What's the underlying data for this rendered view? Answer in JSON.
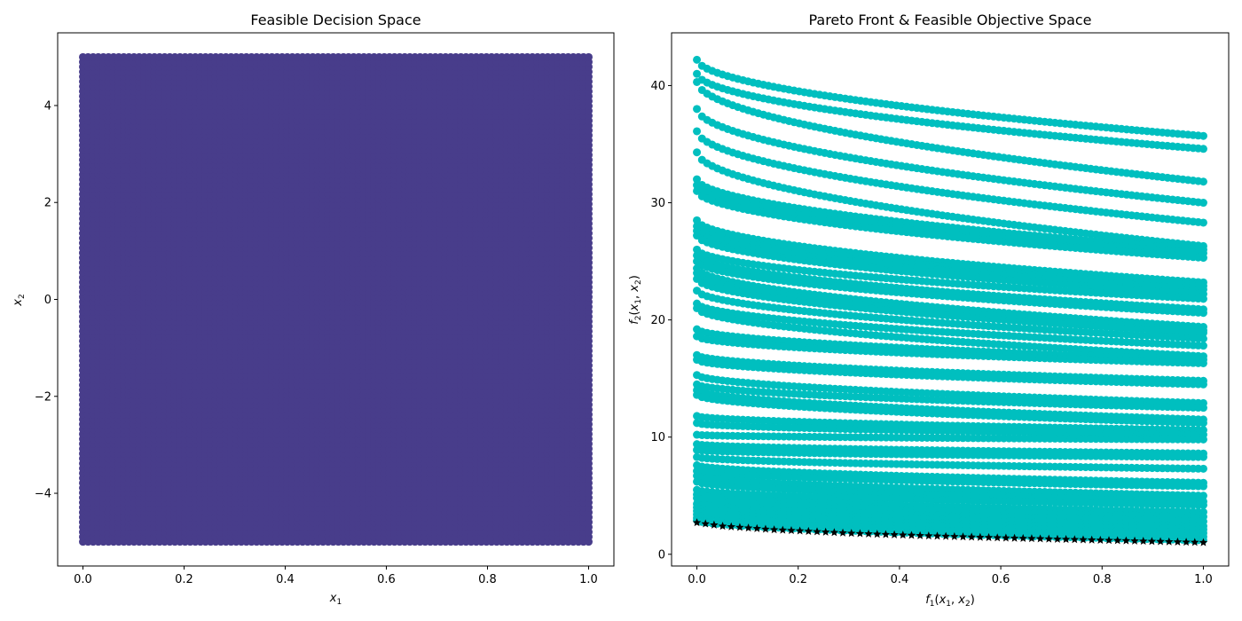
{
  "figure": {
    "background": "#ffffff"
  },
  "chart_data": [
    {
      "type": "scatter",
      "title": "Feasible Decision Space",
      "xlabel": "x1",
      "ylabel": "x2",
      "xlabel_parts": {
        "base": "x",
        "sub": "1"
      },
      "ylabel_parts": {
        "base": "x",
        "sub": "2"
      },
      "xlim": [
        -0.05,
        1.05
      ],
      "ylim": [
        -5.5,
        5.5
      ],
      "xticks": [
        0.0,
        0.2,
        0.4,
        0.6,
        0.8,
        1.0
      ],
      "xtick_labels": [
        "0.0",
        "0.2",
        "0.4",
        "0.6",
        "0.8",
        "1.0"
      ],
      "yticks": [
        -4,
        -2,
        0,
        2,
        4
      ],
      "ytick_labels": [
        "−4",
        "−2",
        "0",
        "2",
        "4"
      ],
      "grid": false,
      "series": [
        {
          "color": "#483d8b",
          "marker": "circle",
          "grid_points": {
            "x_range": [
              0,
              1
            ],
            "x_count": 100,
            "y_range": [
              -5,
              5
            ],
            "y_count": 100
          }
        }
      ]
    },
    {
      "type": "scatter",
      "title": "Pareto Front & Feasible Objective Space",
      "xlabel": "f1(x1, x2)",
      "ylabel": "f2(x1, x2)",
      "xlabel_parts": {
        "f": "f",
        "fsub": "1",
        "args": [
          {
            "base": "x",
            "sub": "1"
          },
          {
            "base": "x",
            "sub": "2"
          }
        ]
      },
      "ylabel_parts": {
        "f": "f",
        "fsub": "2",
        "args": [
          {
            "base": "x",
            "sub": "1"
          },
          {
            "base": "x",
            "sub": "2"
          }
        ]
      },
      "xlim": [
        -0.05,
        1.05
      ],
      "ylim": [
        -1.0,
        44.5
      ],
      "xticks": [
        0.0,
        0.2,
        0.4,
        0.6,
        0.8,
        1.0
      ],
      "xtick_labels": [
        "0.0",
        "0.2",
        "0.4",
        "0.6",
        "0.8",
        "1.0"
      ],
      "yticks": [
        0,
        10,
        20,
        30,
        40
      ],
      "ytick_labels": [
        "0",
        "10",
        "20",
        "30",
        "40"
      ],
      "grid": false,
      "series": [
        {
          "color": "#00bfbf",
          "marker": "circle",
          "curves": "f2 = g(x2) * (1 - sqrt(f1 / g(x2))), sampled over the decision-space grid",
          "g_values": [
            42.2,
            41.0,
            40.3,
            38.0,
            36.1,
            34.3,
            32.0,
            31.5,
            31.0,
            28.5,
            28.0,
            27.6,
            27.2,
            26.0,
            25.5,
            25.0,
            24.4,
            24.0,
            23.5,
            22.5,
            21.4,
            21.0,
            19.2,
            18.6,
            17.0,
            16.6,
            15.3,
            14.5,
            14.0,
            13.6,
            11.8,
            11.2,
            10.2,
            9.4,
            8.9,
            8.3,
            7.6,
            7.1,
            6.7,
            6.2,
            5.5,
            5.1,
            4.8,
            4.3,
            4.0,
            3.7,
            3.4,
            3.1,
            2.9
          ],
          "curve_end_values_at_f1_1": [
            35.7,
            34.6,
            31.8,
            30.0,
            28.3,
            26.3,
            26.0,
            25.7,
            25.3,
            23.2,
            22.9,
            22.6,
            22.2,
            21.8,
            20.9,
            20.6,
            19.4,
            19.1,
            18.9,
            18.4,
            17.8,
            16.9,
            16.6,
            16.3,
            14.8,
            14.5,
            12.9,
            12.5,
            11.5,
            11.2,
            10.6,
            10.2,
            9.8,
            8.6,
            8.3,
            7.3,
            6.1,
            5.8,
            5.0,
            4.5,
            4.2,
            3.6,
            3.2,
            2.8,
            2.4,
            2.1,
            1.8,
            1.5,
            1.2
          ]
        },
        {
          "color": "#000000",
          "marker": "star",
          "name": "Pareto front",
          "x": [
            0.0,
            0.05,
            0.1,
            0.15,
            0.2,
            0.25,
            0.3,
            0.35,
            0.4,
            0.45,
            0.5,
            0.55,
            0.6,
            0.65,
            0.7,
            0.75,
            0.8,
            0.85,
            0.9,
            0.95,
            1.0
          ],
          "y": [
            2.7,
            2.4,
            2.25,
            2.1,
            2.0,
            1.9,
            1.8,
            1.72,
            1.65,
            1.58,
            1.52,
            1.46,
            1.4,
            1.35,
            1.3,
            1.25,
            1.2,
            1.15,
            1.1,
            1.05,
            1.0
          ]
        }
      ]
    }
  ]
}
